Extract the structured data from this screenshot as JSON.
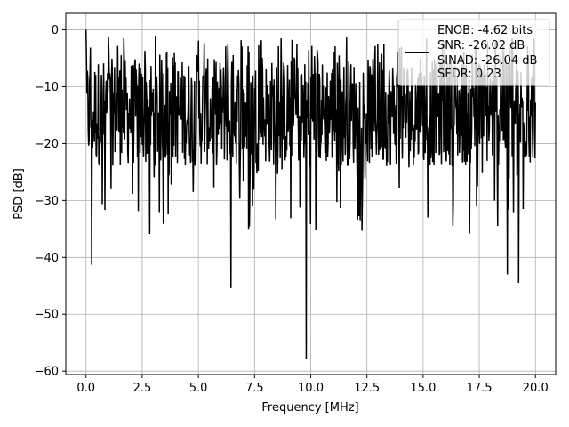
{
  "chart_data": {
    "type": "line",
    "xlabel": "Frequency [MHz]",
    "ylabel": "PSD [dB]",
    "xlim": [
      -0.9,
      20.9
    ],
    "ylim": [
      -60.6,
      2.9
    ],
    "xticks": [
      0.0,
      2.5,
      5.0,
      7.5,
      10.0,
      12.5,
      15.0,
      17.5,
      20.0
    ],
    "xtick_labels": [
      "0.0",
      "2.5",
      "5.0",
      "7.5",
      "10.0",
      "12.5",
      "15.0",
      "17.5",
      "20.0"
    ],
    "yticks": [
      0,
      -10,
      -20,
      -30,
      -40,
      -50,
      -60
    ],
    "ytick_labels": [
      "0",
      "−10",
      "−20",
      "−30",
      "−40",
      "−50",
      "−60"
    ],
    "grid": true,
    "legend_position": "upper-right",
    "series_color": "#000000",
    "legend": {
      "lines": [
        "ENOB: -4.62 bits",
        "SNR: -26.02 dB",
        "SINAD: -26.04 dB",
        "SFDR: 0.23"
      ]
    },
    "series": [
      {
        "points": 1024,
        "x_range": [
          0.0,
          20.0
        ],
        "typical_range_db": [
          -24,
          -5
        ],
        "notable_points": [
          {
            "x": 0.0,
            "y": 0.0
          },
          {
            "x": 0.25,
            "y": -41.3
          },
          {
            "x": 6.45,
            "y": -45.4
          },
          {
            "x": 9.8,
            "y": -57.8
          },
          {
            "x": 18.75,
            "y": -43.0
          },
          {
            "x": 19.25,
            "y": -44.5
          }
        ]
      }
    ]
  }
}
